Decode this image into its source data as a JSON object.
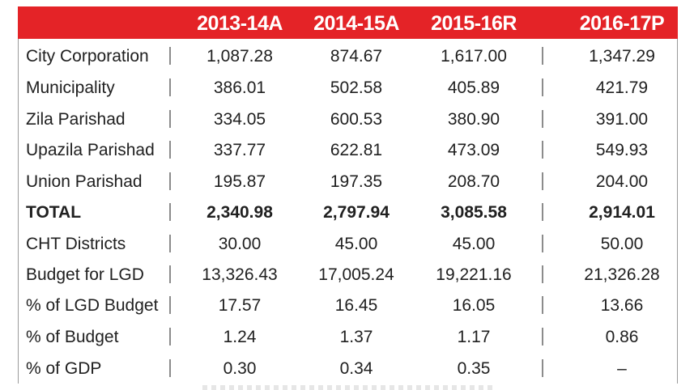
{
  "table": {
    "headers": [
      "2013-14A",
      "2014-15A",
      "2015-16R",
      "2016-17P"
    ],
    "rows": [
      {
        "label": "City Corporation",
        "values": [
          "1,087.28",
          "874.67",
          "1,617.00",
          "1,347.29"
        ],
        "bold": false
      },
      {
        "label": "Municipality",
        "values": [
          "386.01",
          "502.58",
          "405.89",
          "421.79"
        ],
        "bold": false
      },
      {
        "label": "Zila Parishad",
        "values": [
          "334.05",
          "600.53",
          "380.90",
          "391.00"
        ],
        "bold": false
      },
      {
        "label": "Upazila Parishad",
        "values": [
          "337.77",
          "622.81",
          "473.09",
          "549.93"
        ],
        "bold": false
      },
      {
        "label": "Union Parishad",
        "values": [
          "195.87",
          "197.35",
          "208.70",
          "204.00"
        ],
        "bold": false
      },
      {
        "label": "TOTAL",
        "values": [
          "2,340.98",
          "2,797.94",
          "3,085.58",
          "2,914.01"
        ],
        "bold": true
      },
      {
        "label": "CHT Districts",
        "values": [
          "30.00",
          "45.00",
          "45.00",
          "50.00"
        ],
        "bold": false
      },
      {
        "label": "Budget for LGD",
        "values": [
          "13,326.43",
          "17,005.24",
          "19,221.16",
          "21,326.28"
        ],
        "bold": false
      },
      {
        "label": "% of LGD Budget",
        "values": [
          "17.57",
          "16.45",
          "16.05",
          "13.66"
        ],
        "bold": false
      },
      {
        "label": "% of Budget",
        "values": [
          "1.24",
          "1.37",
          "1.17",
          "0.86"
        ],
        "bold": false
      },
      {
        "label": "% of GDP",
        "values": [
          "0.30",
          "0.34",
          "0.35",
          "–"
        ],
        "bold": false
      }
    ]
  },
  "colors": {
    "header_bg": "#e42327",
    "header_text": "#ffffff",
    "body_text": "#202020"
  }
}
